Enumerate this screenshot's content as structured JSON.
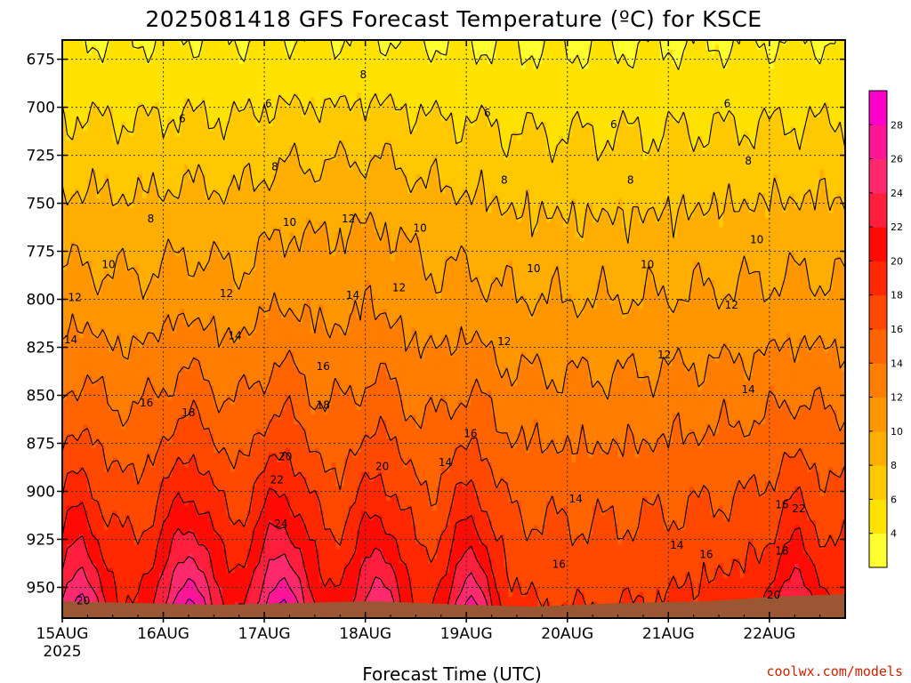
{
  "chart_data": {
    "type": "heatmap",
    "title": "2025081418 GFS Forecast Temperature (ºC) for KSCE",
    "xlabel": "Forecast Time (UTC)",
    "ylabel": "",
    "credit": "coolwx.com/models",
    "y_axis": {
      "unit": "hPa",
      "inverted": true,
      "range": [
        665,
        966
      ],
      "ticks": [
        {
          "value": 675,
          "label": "675"
        },
        {
          "value": 700,
          "label": "700"
        },
        {
          "value": 725,
          "label": "725"
        },
        {
          "value": 750,
          "label": "750"
        },
        {
          "value": 775,
          "label": "775"
        },
        {
          "value": 800,
          "label": "800"
        },
        {
          "value": 825,
          "label": "825"
        },
        {
          "value": 850,
          "label": "850"
        },
        {
          "value": 875,
          "label": "875"
        },
        {
          "value": 900,
          "label": "900"
        },
        {
          "value": 925,
          "label": "925"
        },
        {
          "value": 950,
          "label": "950"
        }
      ]
    },
    "x_axis": {
      "unit": "hours after 2025-08-14 18Z",
      "range": [
        0,
        186
      ],
      "ticks": [
        {
          "value": 0,
          "label": "15AUG",
          "sublabel": "2025"
        },
        {
          "value": 24,
          "label": "16AUG",
          "sublabel": ""
        },
        {
          "value": 48,
          "label": "17AUG",
          "sublabel": ""
        },
        {
          "value": 72,
          "label": "18AUG",
          "sublabel": ""
        },
        {
          "value": 96,
          "label": "19AUG",
          "sublabel": ""
        },
        {
          "value": 120,
          "label": "20AUG",
          "sublabel": ""
        },
        {
          "value": 144,
          "label": "21AUG",
          "sublabel": ""
        },
        {
          "value": 168,
          "label": "22AUG",
          "sublabel": ""
        }
      ]
    },
    "grid": true,
    "colorbar": {
      "levels": [
        2,
        4,
        6,
        8,
        10,
        12,
        14,
        16,
        18,
        20,
        22,
        24,
        26,
        28,
        30
      ],
      "colors": [
        "#ffff30",
        "#ffe200",
        "#ffc800",
        "#ffae00",
        "#ff9600",
        "#ff7d00",
        "#ff6400",
        "#ff4800",
        "#ff2800",
        "#ff0a05",
        "#ff1e3c",
        "#ff2a6e",
        "#ff1696",
        "#ff00c8"
      ],
      "labels": [
        "4",
        "6",
        "8",
        "10",
        "12",
        "14",
        "16",
        "18",
        "20",
        "22",
        "24",
        "26",
        "28"
      ]
    },
    "contour_labels": [
      {
        "t": 5,
        "p": 957,
        "text": "20"
      },
      {
        "t": 28.5,
        "p": 706,
        "text": "6"
      },
      {
        "t": 71.5,
        "p": 683,
        "text": "8"
      },
      {
        "t": 49,
        "p": 698,
        "text": "6"
      },
      {
        "t": 50.5,
        "p": 731,
        "text": "8"
      },
      {
        "t": 101,
        "p": 703,
        "text": "6"
      },
      {
        "t": 131,
        "p": 709,
        "text": "6"
      },
      {
        "t": 158,
        "p": 698,
        "text": "6"
      },
      {
        "t": 21,
        "p": 758,
        "text": "8"
      },
      {
        "t": 105,
        "p": 738,
        "text": "8"
      },
      {
        "t": 135,
        "p": 738,
        "text": "8"
      },
      {
        "t": 163,
        "p": 728,
        "text": "8"
      },
      {
        "t": 54,
        "p": 760,
        "text": "10"
      },
      {
        "t": 68,
        "p": 758,
        "text": "12"
      },
      {
        "t": 85,
        "p": 763,
        "text": "10"
      },
      {
        "t": 112,
        "p": 784,
        "text": "10"
      },
      {
        "t": 139,
        "p": 782,
        "text": "10"
      },
      {
        "t": 165,
        "p": 769,
        "text": "10"
      },
      {
        "t": 11,
        "p": 782,
        "text": "10"
      },
      {
        "t": 3,
        "p": 799,
        "text": "12"
      },
      {
        "t": 39,
        "p": 797,
        "text": "12"
      },
      {
        "t": 80,
        "p": 794,
        "text": "12"
      },
      {
        "t": 105,
        "p": 822,
        "text": "12"
      },
      {
        "t": 143,
        "p": 829,
        "text": "12"
      },
      {
        "t": 159,
        "p": 803,
        "text": "12"
      },
      {
        "t": 2,
        "p": 821,
        "text": "14"
      },
      {
        "t": 41,
        "p": 819,
        "text": "14"
      },
      {
        "t": 69,
        "p": 798,
        "text": "14"
      },
      {
        "t": 91,
        "p": 885,
        "text": "14"
      },
      {
        "t": 122,
        "p": 904,
        "text": "14"
      },
      {
        "t": 146,
        "p": 928,
        "text": "14"
      },
      {
        "t": 163,
        "p": 847,
        "text": "14"
      },
      {
        "t": 20,
        "p": 854,
        "text": "16"
      },
      {
        "t": 62,
        "p": 835,
        "text": "16"
      },
      {
        "t": 97,
        "p": 870,
        "text": "16"
      },
      {
        "t": 118,
        "p": 938,
        "text": "16"
      },
      {
        "t": 153,
        "p": 933,
        "text": "16"
      },
      {
        "t": 171,
        "p": 907,
        "text": "16"
      },
      {
        "t": 30,
        "p": 859,
        "text": "18"
      },
      {
        "t": 62,
        "p": 855,
        "text": "18"
      },
      {
        "t": 171,
        "p": 931,
        "text": "18"
      },
      {
        "t": 53,
        "p": 882,
        "text": "20"
      },
      {
        "t": 76,
        "p": 887,
        "text": "20"
      },
      {
        "t": 169,
        "p": 954,
        "text": "20"
      },
      {
        "t": 51,
        "p": 894,
        "text": "22"
      },
      {
        "t": 175,
        "p": 909,
        "text": "22"
      },
      {
        "t": 52,
        "p": 917,
        "text": "24"
      }
    ]
  }
}
